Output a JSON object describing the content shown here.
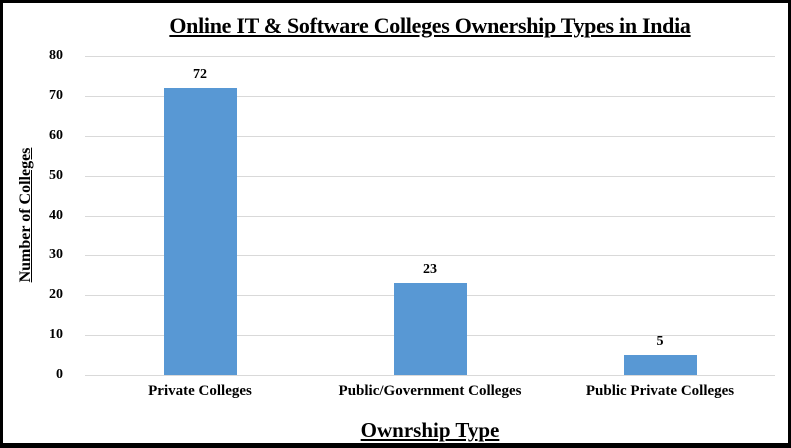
{
  "chart_data": {
    "type": "bar",
    "title": "Online IT & Software Colleges Ownership Types in India",
    "categories": [
      "Private Colleges",
      "Public/Government Colleges",
      "Public Private Colleges"
    ],
    "values": [
      72,
      23,
      5
    ],
    "data_labels": [
      "72",
      "23",
      "5"
    ],
    "xlabel": "Ownrship Type",
    "ylabel": "Number of Colleges",
    "ylim": [
      0,
      80
    ],
    "yticks": [
      0,
      10,
      20,
      30,
      40,
      50,
      60,
      70,
      80
    ],
    "grid": true,
    "legend_position": "none",
    "bar_color": "#5898D4",
    "gridline_color": "#D9D9D9",
    "text_color": "#000000",
    "frame_color": "#000000",
    "background_color": "#FFFFFF"
  }
}
